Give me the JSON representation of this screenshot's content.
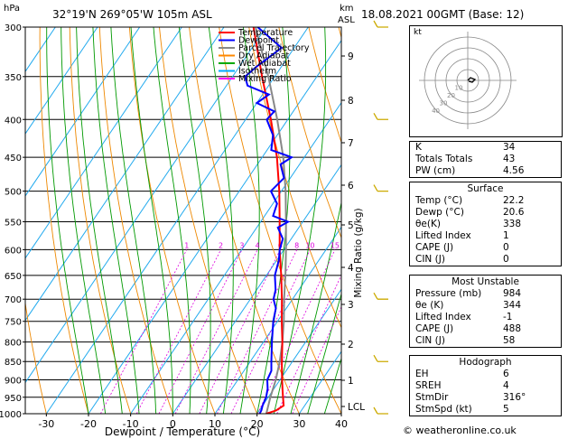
{
  "header": {
    "location": "32°19'N  269°05'W  105m  ASL",
    "datetime": "18.08.2021  00GMT  (Base: 12)",
    "hpa_label": "hPa",
    "km_label": "km",
    "asl_label": "ASL"
  },
  "axes": {
    "xlabel": "Dewpoint / Temperature (°C)",
    "mixing_label": "Mixing Ratio (g/kg)",
    "x_ticks": [
      "-30",
      "-20",
      "-10",
      "0",
      "10",
      "20",
      "30",
      "40"
    ],
    "p_ticks": [
      "300",
      "350",
      "400",
      "450",
      "500",
      "550",
      "600",
      "650",
      "700",
      "750",
      "800",
      "850",
      "900",
      "950",
      "1000"
    ],
    "km_ticks": [
      "9",
      "8",
      "7",
      "6",
      "5",
      "4",
      "3",
      "2",
      "1",
      "LCL"
    ],
    "mix_ticks": [
      "1",
      "2",
      "3",
      "4",
      "6",
      "8",
      "10",
      "15",
      "20",
      "25"
    ]
  },
  "legend": {
    "items": [
      {
        "label": "Temperature",
        "color": "#ff0000"
      },
      {
        "label": "Dewpoint",
        "color": "#0000ff"
      },
      {
        "label": "Parcel Trajectory",
        "color": "#888888"
      },
      {
        "label": "Dry Adiabat",
        "color": "#ff8800"
      },
      {
        "label": "Wet Adiabat",
        "color": "#00aa00"
      },
      {
        "label": "Isotherm",
        "color": "#00aaff"
      },
      {
        "label": "Mixing Ratio",
        "color": "#ff00ff"
      }
    ]
  },
  "hodograph": {
    "label": "kt",
    "ring_labels": [
      "10",
      "20",
      "30",
      "40"
    ]
  },
  "indices": {
    "rows": [
      {
        "label": "K",
        "value": "34"
      },
      {
        "label": "Totals Totals",
        "value": "43"
      },
      {
        "label": "PW (cm)",
        "value": "4.56"
      }
    ]
  },
  "surface": {
    "title": "Surface",
    "rows": [
      {
        "label": "Temp (°C)",
        "value": "22.2"
      },
      {
        "label": "Dewp (°C)",
        "value": "20.6"
      },
      {
        "label": "θe(K)",
        "value": "338"
      },
      {
        "label": "Lifted Index",
        "value": "1"
      },
      {
        "label": "CAPE (J)",
        "value": "0"
      },
      {
        "label": "CIN (J)",
        "value": "0"
      }
    ]
  },
  "most_unstable": {
    "title": "Most Unstable",
    "rows": [
      {
        "label": "Pressure (mb)",
        "value": "984"
      },
      {
        "label": "θe (K)",
        "value": "344"
      },
      {
        "label": "Lifted Index",
        "value": "-1"
      },
      {
        "label": "CAPE (J)",
        "value": "488"
      },
      {
        "label": "CIN (J)",
        "value": "58"
      }
    ]
  },
  "hodo_table": {
    "title": "Hodograph",
    "rows": [
      {
        "label": "EH",
        "value": "6"
      },
      {
        "label": "SREH",
        "value": "4"
      },
      {
        "label": "StmDir",
        "value": "316°"
      },
      {
        "label": "StmSpd (kt)",
        "value": "5"
      }
    ]
  },
  "watermark": "© weatheronline.co.uk",
  "chart_data": {
    "type": "line",
    "title": "32°19'N  269°05'W  105m  ASL",
    "xlabel": "Dewpoint / Temperature (°C)",
    "ylabel": "hPa",
    "xlim": [
      -35,
      40
    ],
    "ylim": [
      1000,
      300
    ],
    "y_scale": "log",
    "series": [
      {
        "name": "Temperature",
        "color": "#ff0000",
        "pressure": [
          1000,
          990,
          975,
          950,
          925,
          900,
          875,
          850,
          800,
          750,
          700,
          650,
          600,
          550,
          500,
          450,
          400,
          350,
          300
        ],
        "temp": [
          22.2,
          24,
          25,
          23.5,
          22,
          20.5,
          19,
          17.5,
          14.5,
          11,
          7.5,
          3.5,
          -1,
          -5.5,
          -10.5,
          -16.5,
          -24,
          -33,
          -43
        ]
      },
      {
        "name": "Dewpoint",
        "color": "#0000ff",
        "pressure": [
          1000,
          990,
          975,
          950,
          925,
          900,
          875,
          850,
          800,
          750,
          720,
          700,
          680,
          650,
          620,
          600,
          580,
          560,
          550,
          540,
          520,
          500,
          480,
          460,
          450,
          440,
          420,
          400,
          390,
          380,
          370,
          360,
          350,
          340,
          320,
          300
        ],
        "dewp": [
          20.6,
          20.5,
          20,
          19.5,
          18.5,
          17,
          16.5,
          15,
          12,
          9,
          7.5,
          5.5,
          4.5,
          2,
          0.5,
          -1,
          -2,
          -5,
          -3.5,
          -8,
          -9,
          -12.5,
          -11.5,
          -14.5,
          -13,
          -19,
          -21,
          -25,
          -24.5,
          -30,
          -28.5,
          -35,
          -37,
          -36,
          -33,
          -42
        ]
      },
      {
        "name": "Parcel Trajectory",
        "color": "#888888",
        "pressure": [
          1000,
          950,
          900,
          850,
          800,
          750,
          700,
          650,
          600,
          550,
          500,
          450,
          400,
          350,
          300
        ],
        "temp": [
          22.2,
          20.5,
          19,
          17,
          14.5,
          11.5,
          8,
          4.5,
          0.5,
          -4,
          -9,
          -15,
          -22.5,
          -31.5,
          -42.5
        ]
      }
    ],
    "winds": {
      "pressure": [
        1000,
        850,
        700,
        500,
        400,
        300
      ]
    }
  }
}
